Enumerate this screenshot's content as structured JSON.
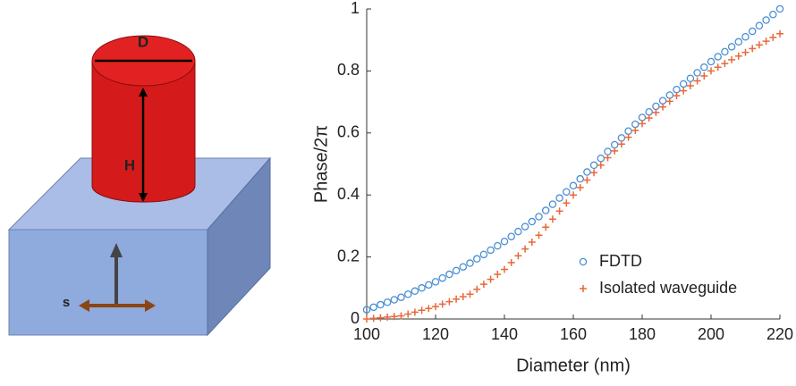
{
  "diagram": {
    "labels": [
      "D",
      "H",
      "s"
    ]
  },
  "chart_data": {
    "type": "scatter",
    "xlabel": "Diameter (nm)",
    "ylabel": "Phase/2π",
    "x": [
      100,
      102,
      104,
      106,
      108,
      110,
      112,
      114,
      116,
      118,
      120,
      122,
      124,
      126,
      128,
      130,
      132,
      134,
      136,
      138,
      140,
      142,
      144,
      146,
      148,
      150,
      152,
      154,
      156,
      158,
      160,
      162,
      164,
      166,
      168,
      170,
      172,
      174,
      176,
      178,
      180,
      182,
      184,
      186,
      188,
      190,
      192,
      194,
      196,
      198,
      200,
      202,
      204,
      206,
      208,
      210,
      212,
      214,
      216,
      218,
      220
    ],
    "series": [
      {
        "name": "FDTD",
        "color": "#4a8fd4",
        "marker": "circle",
        "values": [
          0.03,
          0.038,
          0.046,
          0.054,
          0.062,
          0.07,
          0.08,
          0.09,
          0.1,
          0.11,
          0.12,
          0.132,
          0.144,
          0.156,
          0.168,
          0.18,
          0.194,
          0.208,
          0.222,
          0.236,
          0.25,
          0.266,
          0.282,
          0.298,
          0.314,
          0.33,
          0.35,
          0.37,
          0.39,
          0.41,
          0.43,
          0.452,
          0.474,
          0.496,
          0.518,
          0.54,
          0.562,
          0.584,
          0.606,
          0.628,
          0.65,
          0.668,
          0.686,
          0.704,
          0.722,
          0.74,
          0.758,
          0.776,
          0.794,
          0.812,
          0.83,
          0.846,
          0.862,
          0.878,
          0.894,
          0.91,
          0.928,
          0.946,
          0.964,
          0.982,
          1.0
        ]
      },
      {
        "name": "Isolated waveguide",
        "color": "#e8683a",
        "marker": "plus",
        "values": [
          0,
          0.002,
          0.004,
          0.006,
          0.008,
          0.01,
          0.016,
          0.022,
          0.028,
          0.034,
          0.04,
          0.048,
          0.056,
          0.064,
          0.072,
          0.08,
          0.096,
          0.112,
          0.128,
          0.144,
          0.16,
          0.182,
          0.204,
          0.226,
          0.248,
          0.27,
          0.296,
          0.322,
          0.348,
          0.374,
          0.4,
          0.424,
          0.448,
          0.472,
          0.496,
          0.52,
          0.542,
          0.564,
          0.586,
          0.608,
          0.63,
          0.648,
          0.666,
          0.684,
          0.702,
          0.72,
          0.736,
          0.752,
          0.768,
          0.784,
          0.8,
          0.812,
          0.824,
          0.836,
          0.848,
          0.86,
          0.872,
          0.884,
          0.896,
          0.908,
          0.92
        ]
      }
    ],
    "xlim": [
      100,
      220
    ],
    "xticks": [
      100,
      120,
      140,
      160,
      180,
      200,
      220
    ],
    "ylim": [
      0,
      1
    ],
    "yticks": [
      0,
      0.2,
      0.4,
      0.6,
      0.8,
      1
    ],
    "legend": "lower right"
  }
}
